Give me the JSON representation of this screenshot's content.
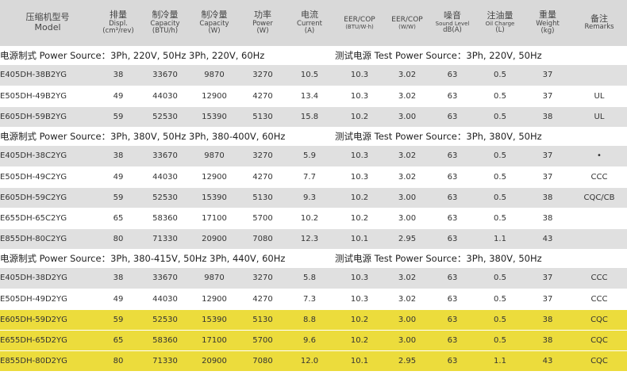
{
  "headers": [
    {
      "zh": "压缩机型号",
      "en": "Model"
    },
    {
      "zh": "排量",
      "en": "Displ.",
      "unit": "(cm³/rev)"
    },
    {
      "zh": "制冷量",
      "en": "Capacity",
      "unit": "(BTU/h)"
    },
    {
      "zh": "制冷量",
      "en": "Capacity",
      "unit": "(W)"
    },
    {
      "zh": "功率",
      "en": "Power",
      "unit": "(W)"
    },
    {
      "zh": "电流",
      "en": "Current",
      "unit": "(A)"
    },
    {
      "zh": "EER/COP",
      "en": "",
      "unit": "(BTU/W·h)"
    },
    {
      "zh": "EER/COP",
      "en": "",
      "unit": "(W/W)"
    },
    {
      "zh": "噪音",
      "en": "Sound Level",
      "unit": "dB(A)"
    },
    {
      "zh": "注油量",
      "en": "Oil Charge",
      "unit": "(L)"
    },
    {
      "zh": "重量",
      "en": "Weight",
      "unit": "(kg)"
    },
    {
      "zh": "备注",
      "en": "Remarks",
      "unit": ""
    }
  ],
  "sections": [
    {
      "power_label": "电源制式 Power Source：3Ph, 220V, 50Hz    3Ph, 220V, 60Hz",
      "test_label": "测试电源 Test Power Source：3Ph, 220V, 50Hz",
      "rows": [
        {
          "model": "E405DH-38B2YG",
          "displ": "38",
          "btu": "33670",
          "w": "9870",
          "power": "3270",
          "current": "10.5",
          "eer": "10.3",
          "cop": "3.02",
          "sound": "63",
          "oil": "0.5",
          "weight": "37",
          "remarks": "",
          "color": "gray"
        },
        {
          "model": "E505DH-49B2YG",
          "displ": "49",
          "btu": "44030",
          "w": "12900",
          "power": "4270",
          "current": "13.4",
          "eer": "10.3",
          "cop": "3.02",
          "sound": "63",
          "oil": "0.5",
          "weight": "37",
          "remarks": "UL",
          "color": "white"
        },
        {
          "model": "E605DH-59B2YG",
          "displ": "59",
          "btu": "52530",
          "w": "15390",
          "power": "5130",
          "current": "15.8",
          "eer": "10.2",
          "cop": "3.00",
          "sound": "63",
          "oil": "0.5",
          "weight": "38",
          "remarks": "UL",
          "color": "gray"
        }
      ]
    },
    {
      "power_label": "电源制式 Power Source：3Ph, 380V, 50Hz    3Ph, 380-400V, 60Hz",
      "test_label": "测试电源 Test Power Source：3Ph, 380V, 50Hz",
      "rows": [
        {
          "model": "E405DH-38C2YG",
          "displ": "38",
          "btu": "33670",
          "w": "9870",
          "power": "3270",
          "current": "5.9",
          "eer": "10.3",
          "cop": "3.02",
          "sound": "63",
          "oil": "0.5",
          "weight": "37",
          "remarks": "•",
          "color": "gray"
        },
        {
          "model": "E505DH-49C2YG",
          "displ": "49",
          "btu": "44030",
          "w": "12900",
          "power": "4270",
          "current": "7.7",
          "eer": "10.3",
          "cop": "3.02",
          "sound": "63",
          "oil": "0.5",
          "weight": "37",
          "remarks": "CCC",
          "color": "white"
        },
        {
          "model": "E605DH-59C2YG",
          "displ": "59",
          "btu": "52530",
          "w": "15390",
          "power": "5130",
          "current": "9.3",
          "eer": "10.2",
          "cop": "3.00",
          "sound": "63",
          "oil": "0.5",
          "weight": "38",
          "remarks": "CQC/CB",
          "color": "gray"
        },
        {
          "model": "E655DH-65C2YG",
          "displ": "65",
          "btu": "58360",
          "w": "17100",
          "power": "5700",
          "current": "10.2",
          "eer": "10.2",
          "cop": "3.00",
          "sound": "63",
          "oil": "0.5",
          "weight": "38",
          "remarks": "",
          "color": "white"
        },
        {
          "model": "E855DH-80C2YG",
          "displ": "80",
          "btu": "71330",
          "w": "20900",
          "power": "7080",
          "current": "12.3",
          "eer": "10.1",
          "cop": "2.95",
          "sound": "63",
          "oil": "1.1",
          "weight": "43",
          "remarks": "",
          "color": "gray"
        }
      ]
    },
    {
      "power_label": "电源制式 Power Source：3Ph, 380-415V, 50Hz    3Ph, 440V, 60Hz",
      "test_label": "测试电源 Test Power Source：3Ph, 380V, 50Hz",
      "rows": [
        {
          "model": "E405DH-38D2YG",
          "displ": "38",
          "btu": "33670",
          "w": "9870",
          "power": "3270",
          "current": "5.8",
          "eer": "10.3",
          "cop": "3.02",
          "sound": "63",
          "oil": "0.5",
          "weight": "37",
          "remarks": "CCC",
          "color": "gray"
        },
        {
          "model": "E505DH-49D2YG",
          "displ": "49",
          "btu": "44030",
          "w": "12900",
          "power": "4270",
          "current": "7.3",
          "eer": "10.3",
          "cop": "3.02",
          "sound": "63",
          "oil": "0.5",
          "weight": "37",
          "remarks": "CCC",
          "color": "white"
        },
        {
          "model": "E605DH-59D2YG",
          "displ": "59",
          "btu": "52530",
          "w": "15390",
          "power": "5130",
          "current": "8.8",
          "eer": "10.2",
          "cop": "3.00",
          "sound": "63",
          "oil": "0.5",
          "weight": "38",
          "remarks": "CQC",
          "color": "yellow"
        },
        {
          "model": "E655DH-65D2YG",
          "displ": "65",
          "btu": "58360",
          "w": "17100",
          "power": "5700",
          "current": "9.6",
          "eer": "10.2",
          "cop": "3.00",
          "sound": "63",
          "oil": "0.5",
          "weight": "38",
          "remarks": "CQC",
          "color": "yellow"
        },
        {
          "model": "E855DH-80D2YG",
          "displ": "80",
          "btu": "71330",
          "w": "20900",
          "power": "7080",
          "current": "12.0",
          "eer": "10.1",
          "cop": "2.95",
          "sound": "63",
          "oil": "1.1",
          "weight": "43",
          "remarks": "CQC",
          "color": "yellow"
        }
      ]
    }
  ],
  "colors": {
    "header_bg": "#d9d9d9",
    "row_gray": "#e0e0e0",
    "row_white": "#ffffff",
    "row_highlight": "#ecdc3c"
  }
}
